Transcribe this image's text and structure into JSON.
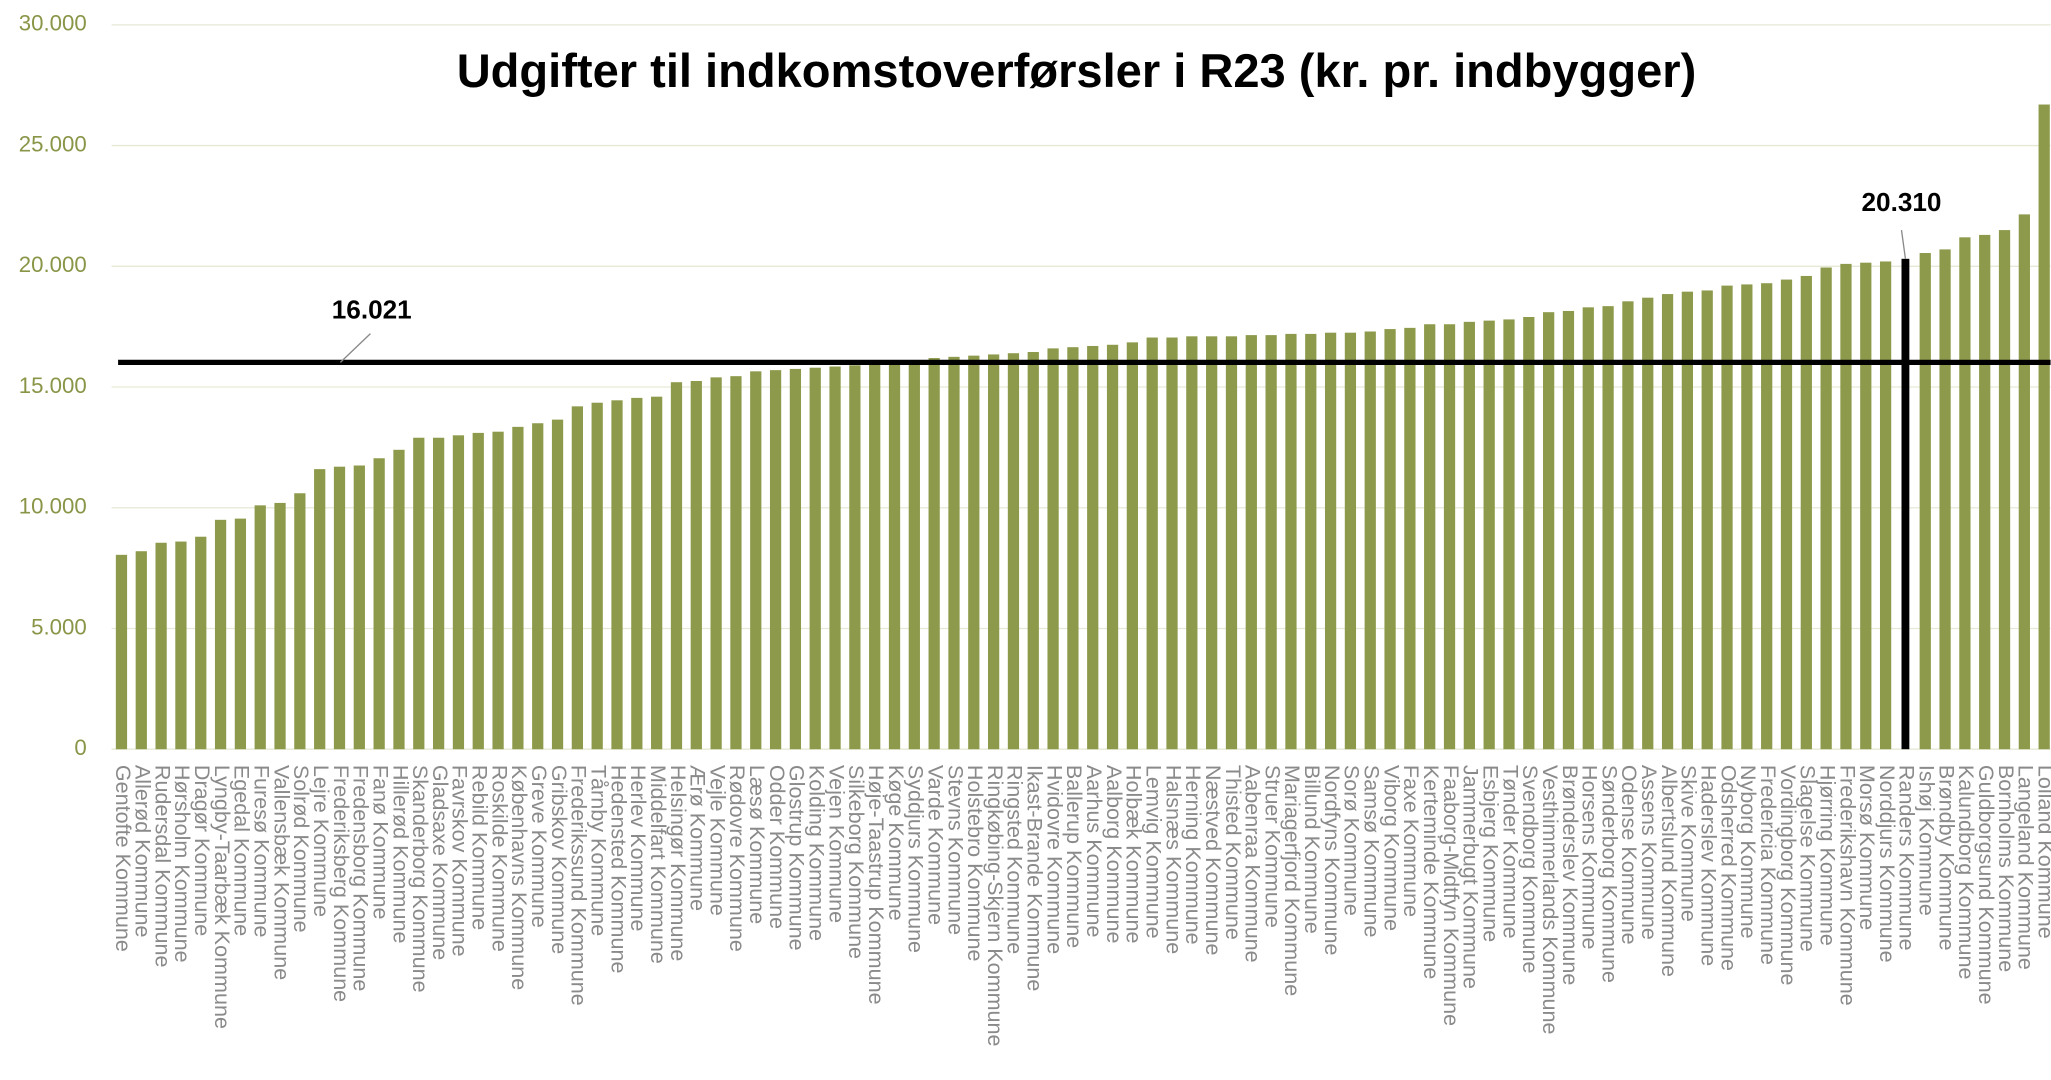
{
  "chart_data": {
    "type": "bar",
    "title": "Udgifter til indkomstoverførsler i R23 (kr. pr. indbygger)",
    "categories": [
      "Gentofte Kommune",
      "Allerød Kommune",
      "Rudersdal Kommune",
      "Hørsholm Kommune",
      "Dragør Kommune",
      "Lyngby-Taarbæk Kommune",
      "Egedal Kommune",
      "Furesø Kommune",
      "Vallensbæk Kommune",
      "Solrød Kommune",
      "Lejre Kommune",
      "Frederiksberg Kommune",
      "Fredensborg Kommune",
      "Fanø Kommune",
      "Hillerød Kommune",
      "Skanderborg Kommune",
      "Gladsaxe Kommune",
      "Favrskov Kommune",
      "Rebild Kommune",
      "Roskilde Kommune",
      "Københavns Kommune",
      "Greve Kommune",
      "Gribskov Kommune",
      "Frederikssund Kommune",
      "Tårnby Kommune",
      "Hedensted Kommune",
      "Herlev Kommune",
      "Middelfart Kommune",
      "Helsingør Kommune",
      "Ærø Kommune",
      "Vejle Kommune",
      "Rødovre Kommune",
      "Læsø Kommune",
      "Odder Kommune",
      "Glostrup Kommune",
      "Kolding Kommune",
      "Vejen Kommune",
      "Silkeborg Kommune",
      "Høje-Taastrup Kommune",
      "Køge Kommune",
      "Syddjurs Kommune",
      "Varde Kommune",
      "Stevns Kommune",
      "Holstebro Kommune",
      "Ringkøbing-Skjern Kommune",
      "Ringsted Kommune",
      "Ikast-Brande Kommune",
      "Hvidovre Kommune",
      "Ballerup Kommune",
      "Aarhus Kommune",
      "Aalborg Kommune",
      "Holbæk Kommune",
      "Lemvig Kommune",
      "Halsnæs Kommune",
      "Herning Kommune",
      "Næstved Kommune",
      "Thisted Kommune",
      "Aabenraa Kommune",
      "Struer Kommune",
      "Mariagerfjord Kommune",
      "Billund Kommune",
      "Nordfyns Kommune",
      "Sorø Kommune",
      "Samsø Kommune",
      "Viborg Kommune",
      "Faxe Kommune",
      "Kerteminde Kommune",
      "Faaborg-Midtfyn Kommune",
      "Jammerbugt Kommune",
      "Esbjerg Kommune",
      "Tønder Kommune",
      "Svendborg Kommune",
      "Vesthimmerlands Kommune",
      "Brønderslev Kommune",
      "Horsens Kommune",
      "Sønderborg Kommune",
      "Odense Kommune",
      "Assens Kommune",
      "Albertslund Kommune",
      "Skive Kommune",
      "Haderslev Kommune",
      "Odsherred Kommune",
      "Nyborg Kommune",
      "Fredericia Kommune",
      "Vordingborg Kommune",
      "Slagelse Kommune",
      "Hjørring Kommune",
      "Frederikshavn Kommune",
      "Morsø Kommune",
      "Norddjurs Kommune",
      "Randers Kommune",
      "Ishøj Kommune",
      "Brøndby Kommune",
      "Kalundborg Kommune",
      "Guldborgsund Kommune",
      "Bornholms Kommune",
      "Langeland Kommune",
      "Lolland Kommune"
    ],
    "values": [
      8050,
      8200,
      8550,
      8600,
      8800,
      9500,
      9550,
      10100,
      10200,
      10600,
      11600,
      11700,
      11750,
      12050,
      12400,
      12900,
      12900,
      13000,
      13100,
      13150,
      13350,
      13500,
      13650,
      14200,
      14350,
      14450,
      14550,
      14600,
      15200,
      15250,
      15400,
      15450,
      15650,
      15700,
      15750,
      15800,
      15850,
      15900,
      15950,
      16000,
      16050,
      16200,
      16250,
      16300,
      16350,
      16400,
      16450,
      16600,
      16650,
      16700,
      16750,
      16850,
      17050,
      17050,
      17100,
      17100,
      17100,
      17150,
      17150,
      17200,
      17200,
      17250,
      17250,
      17300,
      17400,
      17450,
      17600,
      17600,
      17700,
      17750,
      17800,
      17900,
      18100,
      18150,
      18300,
      18350,
      18550,
      18700,
      18850,
      18950,
      19000,
      19200,
      19250,
      19300,
      19450,
      19600,
      19950,
      20100,
      20150,
      20200,
      20310,
      20550,
      20700,
      21200,
      21300,
      21500,
      22150,
      26700
    ],
    "value_labels": [
      null,
      null,
      null,
      null,
      null,
      null,
      null,
      null,
      null,
      null,
      null,
      null,
      null,
      null,
      null,
      null,
      null,
      null,
      null,
      null,
      null,
      null,
      null,
      null,
      null,
      null,
      null,
      null,
      null,
      null,
      null,
      null,
      null,
      null,
      null,
      null,
      null,
      null,
      null,
      null,
      null,
      null,
      null,
      null,
      null,
      null,
      null,
      null,
      null,
      null,
      null,
      null,
      null,
      null,
      null,
      null,
      null,
      null,
      null,
      null,
      null,
      null,
      null,
      null,
      null,
      null,
      null,
      null,
      null,
      null,
      null,
      null,
      null,
      null,
      null,
      null,
      null,
      null,
      null,
      null,
      null,
      null,
      null,
      null,
      null,
      null,
      null,
      null,
      null,
      null,
      "20.310",
      null,
      null,
      null,
      null,
      null,
      null,
      null
    ],
    "color": "#8e9a4b",
    "highlight_category": "Randers Kommune",
    "highlight_color": "#000000",
    "reference_line": {
      "value": 16021,
      "label": "16.021",
      "color": "#000000"
    },
    "ylim": [
      0,
      30000
    ],
    "yticks": [
      {
        "value": 0,
        "label": "0"
      },
      {
        "value": 5000,
        "label": "5.000"
      },
      {
        "value": 10000,
        "label": "10.000"
      },
      {
        "value": 15000,
        "label": "15.000"
      },
      {
        "value": 20000,
        "label": "20.000"
      },
      {
        "value": 25000,
        "label": "25.000"
      },
      {
        "value": 30000,
        "label": "30.000"
      }
    ],
    "grid": true
  }
}
